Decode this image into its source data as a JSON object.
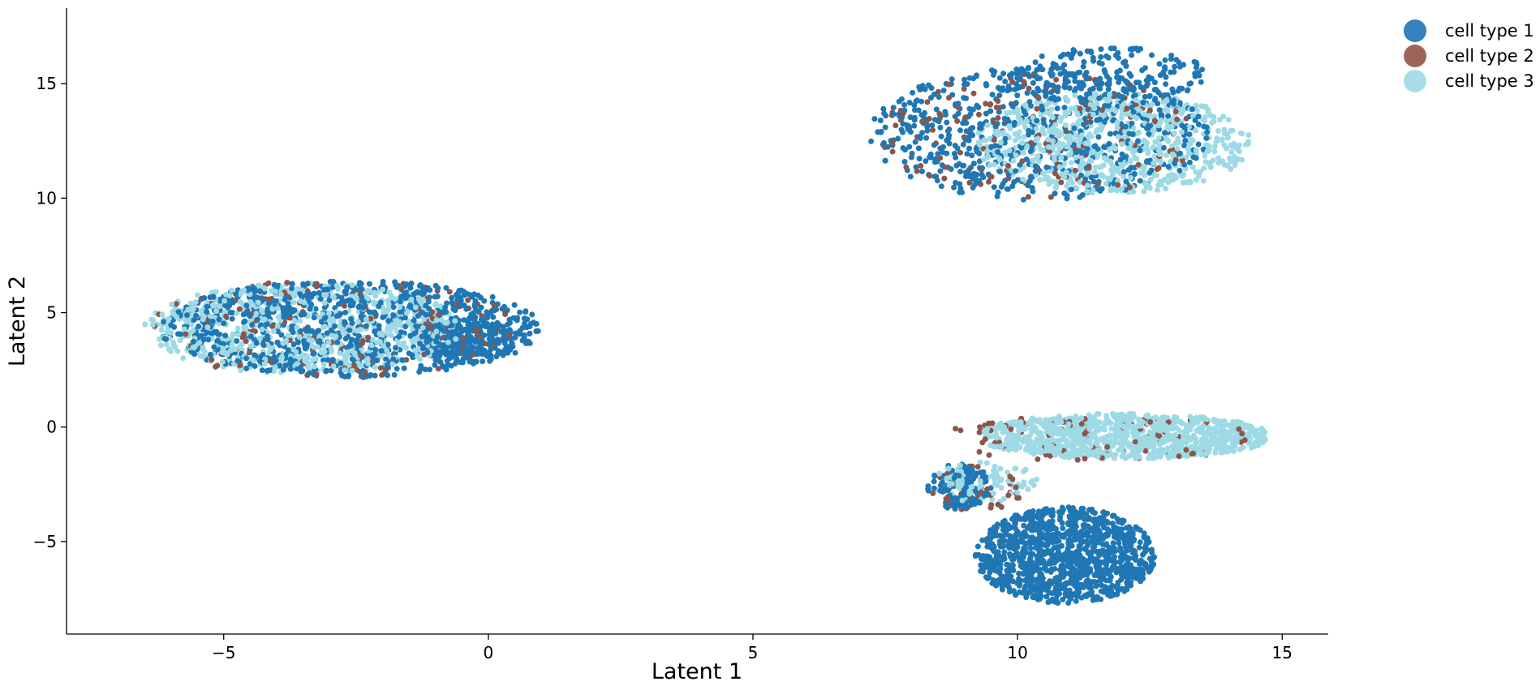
{
  "chart_data": {
    "type": "scatter",
    "title": "",
    "xlabel": "Latent 1",
    "ylabel": "Latent 2",
    "xlim": [
      -7.97,
      15.87
    ],
    "ylim": [
      -9.04,
      18.3
    ],
    "xticks": [
      -5,
      0,
      5,
      10,
      15
    ],
    "yticks": [
      -5,
      0,
      5,
      10,
      15
    ],
    "xtick_labels": [
      "−5",
      "0",
      "5",
      "10",
      "15"
    ],
    "ytick_labels": [
      "−5",
      "0",
      "5",
      "10",
      "15"
    ],
    "grid": false,
    "legend_position": "outside top-right",
    "marker_size": 3.5,
    "series": [
      {
        "name": "cell type 1",
        "color": "#1f77b4",
        "legend_color": "#3182bd",
        "clusters": [
          {
            "cx": -2.6,
            "cy": 4.3,
            "rx": 3.6,
            "ry": 2.1,
            "n": 900
          },
          {
            "cx": -0.4,
            "cy": 3.8,
            "rx": 0.9,
            "ry": 1.0,
            "n": 220
          },
          {
            "cx": 10.4,
            "cy": 12.8,
            "rx": 3.2,
            "ry": 2.9,
            "n": 650
          },
          {
            "cx": 11.8,
            "cy": 15.4,
            "rx": 1.8,
            "ry": 1.2,
            "n": 180
          },
          {
            "cx": 10.9,
            "cy": -5.6,
            "rx": 1.7,
            "ry": 2.1,
            "n": 1100
          },
          {
            "cx": 8.9,
            "cy": -2.6,
            "rx": 0.6,
            "ry": 1.0,
            "n": 120
          }
        ]
      },
      {
        "name": "cell type 2",
        "color": "#8c564b",
        "legend_color": "#9c6558",
        "clusters": [
          {
            "cx": -2.9,
            "cy": 4.3,
            "rx": 3.5,
            "ry": 2.2,
            "n": 150
          },
          {
            "cx": 10.4,
            "cy": 12.7,
            "rx": 3.0,
            "ry": 2.8,
            "n": 170
          },
          {
            "cx": 11.5,
            "cy": -0.5,
            "rx": 3.0,
            "ry": 1.0,
            "n": 90
          },
          {
            "cx": 9.2,
            "cy": -2.7,
            "rx": 0.9,
            "ry": 1.0,
            "n": 40
          }
        ]
      },
      {
        "name": "cell type 3",
        "color": "#9edae5",
        "legend_color": "#a6dde6",
        "clusters": [
          {
            "cx": -3.5,
            "cy": 4.3,
            "rx": 3.0,
            "ry": 2.0,
            "n": 750
          },
          {
            "cx": 11.8,
            "cy": 12.4,
            "rx": 2.6,
            "ry": 2.2,
            "n": 700
          },
          {
            "cx": 12.0,
            "cy": -0.4,
            "rx": 2.8,
            "ry": 1.0,
            "n": 950
          },
          {
            "cx": 9.4,
            "cy": -2.4,
            "rx": 1.0,
            "ry": 0.9,
            "n": 80
          }
        ]
      }
    ]
  }
}
